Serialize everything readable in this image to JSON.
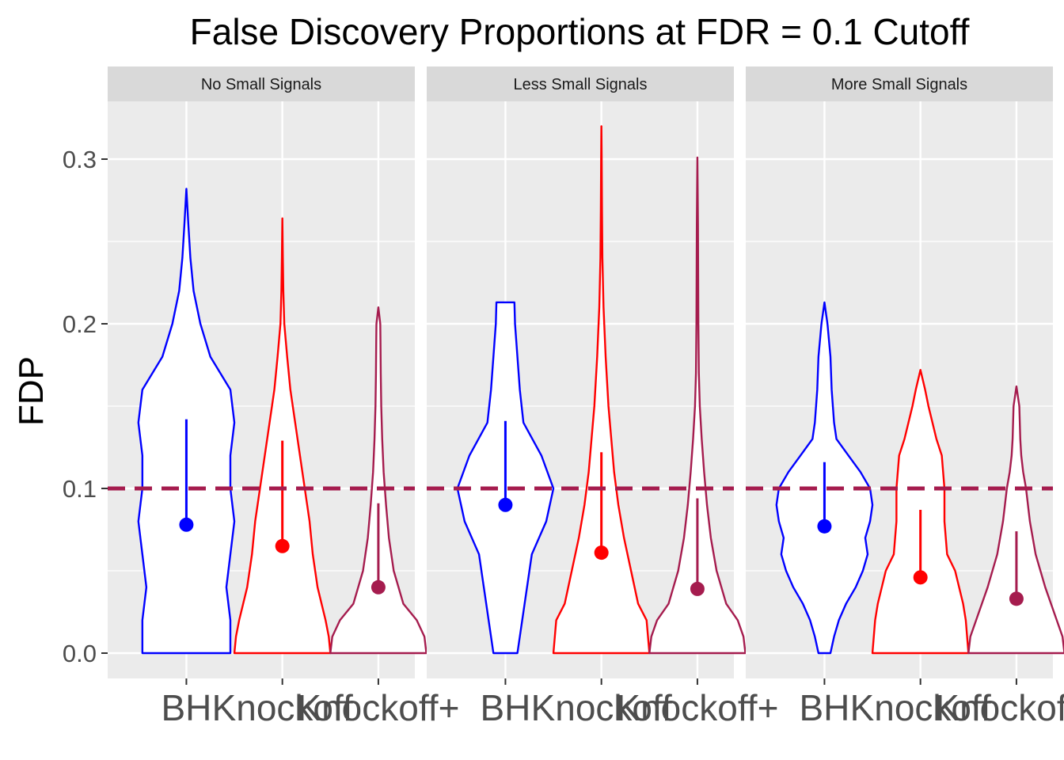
{
  "chart_data": {
    "type": "violin",
    "title": "False Discovery Proportions at FDR = 0.1 Cutoff",
    "xlabel": "",
    "ylabel": "FDP",
    "ylim": [
      -0.015,
      0.335
    ],
    "yticks": [
      0.0,
      0.1,
      0.2,
      0.3
    ],
    "ytick_labels": [
      "0.0",
      "0.1",
      "0.2",
      "0.3"
    ],
    "grid": true,
    "reference_line": {
      "y": 0.1,
      "style": "dashed",
      "color": "#A51C4E"
    },
    "categories": [
      "BH",
      "Knockoff",
      "Knockoff+"
    ],
    "series_colors": {
      "BH": "#0000FF",
      "Knockoff": "#FF0000",
      "Knockoff+": "#A51C4E"
    },
    "panels": [
      {
        "strip": "No Small Signals",
        "groups": [
          {
            "method": "BH",
            "mean": 0.078,
            "upper": 0.142,
            "max": 0.282,
            "profile": [
              [
                0.0,
                0.11
              ],
              [
                0.02,
                0.11
              ],
              [
                0.04,
                0.1
              ],
              [
                0.06,
                0.11
              ],
              [
                0.08,
                0.12
              ],
              [
                0.1,
                0.11
              ],
              [
                0.12,
                0.11
              ],
              [
                0.14,
                0.12
              ],
              [
                0.16,
                0.11
              ],
              [
                0.18,
                0.06
              ],
              [
                0.2,
                0.035
              ],
              [
                0.22,
                0.018
              ],
              [
                0.24,
                0.01
              ],
              [
                0.26,
                0.005
              ],
              [
                0.282,
                0.0
              ]
            ]
          },
          {
            "method": "Knockoff",
            "mean": 0.065,
            "upper": 0.129,
            "max": 0.264,
            "profile": [
              [
                0.0,
                0.3
              ],
              [
                0.01,
                0.29
              ],
              [
                0.02,
                0.27
              ],
              [
                0.04,
                0.22
              ],
              [
                0.06,
                0.19
              ],
              [
                0.08,
                0.17
              ],
              [
                0.1,
                0.14
              ],
              [
                0.12,
                0.11
              ],
              [
                0.14,
                0.08
              ],
              [
                0.16,
                0.05
              ],
              [
                0.18,
                0.03
              ],
              [
                0.2,
                0.012
              ],
              [
                0.22,
                0.006
              ],
              [
                0.24,
                0.003
              ],
              [
                0.264,
                0.0
              ]
            ]
          },
          {
            "method": "Knockoff+",
            "mean": 0.04,
            "upper": 0.091,
            "max": 0.21,
            "profile": [
              [
                0.0,
                0.5
              ],
              [
                0.01,
                0.48
              ],
              [
                0.02,
                0.4
              ],
              [
                0.03,
                0.26
              ],
              [
                0.05,
                0.16
              ],
              [
                0.07,
                0.11
              ],
              [
                0.09,
                0.08
              ],
              [
                0.11,
                0.055
              ],
              [
                0.13,
                0.04
              ],
              [
                0.15,
                0.03
              ],
              [
                0.17,
                0.025
              ],
              [
                0.19,
                0.022
              ],
              [
                0.2,
                0.02
              ],
              [
                0.21,
                0.0
              ]
            ]
          }
        ]
      },
      {
        "strip": "Less Small Signals",
        "groups": [
          {
            "method": "BH",
            "mean": 0.09,
            "upper": 0.141,
            "max": 0.213,
            "profile": [
              [
                0.0,
                0.1
              ],
              [
                0.02,
                0.14
              ],
              [
                0.04,
                0.18
              ],
              [
                0.06,
                0.22
              ],
              [
                0.08,
                0.34
              ],
              [
                0.1,
                0.4
              ],
              [
                0.12,
                0.3
              ],
              [
                0.14,
                0.15
              ],
              [
                0.16,
                0.12
              ],
              [
                0.18,
                0.1
              ],
              [
                0.2,
                0.08
              ],
              [
                0.213,
                0.075
              ]
            ]
          },
          {
            "method": "Knockoff",
            "mean": 0.061,
            "upper": 0.122,
            "max": 0.32,
            "profile": [
              [
                0.0,
                0.34
              ],
              [
                0.02,
                0.32
              ],
              [
                0.03,
                0.26
              ],
              [
                0.05,
                0.21
              ],
              [
                0.07,
                0.16
              ],
              [
                0.09,
                0.12
              ],
              [
                0.11,
                0.09
              ],
              [
                0.13,
                0.07
              ],
              [
                0.15,
                0.05
              ],
              [
                0.18,
                0.03
              ],
              [
                0.21,
                0.015
              ],
              [
                0.24,
                0.007
              ],
              [
                0.27,
                0.004
              ],
              [
                0.3,
                0.002
              ],
              [
                0.32,
                0.0
              ]
            ]
          },
          {
            "method": "Knockoff+",
            "mean": 0.039,
            "upper": 0.094,
            "max": 0.301,
            "profile": [
              [
                0.0,
                0.5
              ],
              [
                0.01,
                0.48
              ],
              [
                0.02,
                0.42
              ],
              [
                0.03,
                0.3
              ],
              [
                0.05,
                0.2
              ],
              [
                0.07,
                0.14
              ],
              [
                0.09,
                0.1
              ],
              [
                0.11,
                0.07
              ],
              [
                0.13,
                0.045
              ],
              [
                0.15,
                0.025
              ],
              [
                0.17,
                0.015
              ],
              [
                0.2,
                0.01
              ],
              [
                0.23,
                0.008
              ],
              [
                0.26,
                0.006
              ],
              [
                0.301,
                0.0
              ]
            ]
          }
        ]
      },
      {
        "strip": "More Small Signals",
        "groups": [
          {
            "method": "BH",
            "mean": 0.077,
            "upper": 0.116,
            "max": 0.213,
            "profile": [
              [
                0.0,
                0.05
              ],
              [
                0.01,
                0.08
              ],
              [
                0.02,
                0.12
              ],
              [
                0.03,
                0.18
              ],
              [
                0.04,
                0.26
              ],
              [
                0.05,
                0.32
              ],
              [
                0.06,
                0.36
              ],
              [
                0.07,
                0.34
              ],
              [
                0.08,
                0.38
              ],
              [
                0.09,
                0.4
              ],
              [
                0.1,
                0.38
              ],
              [
                0.11,
                0.3
              ],
              [
                0.12,
                0.2
              ],
              [
                0.13,
                0.1
              ],
              [
                0.14,
                0.08
              ],
              [
                0.16,
                0.06
              ],
              [
                0.18,
                0.05
              ],
              [
                0.2,
                0.025
              ],
              [
                0.213,
                0.0
              ]
            ]
          },
          {
            "method": "Knockoff",
            "mean": 0.046,
            "upper": 0.087,
            "max": 0.172,
            "profile": [
              [
                0.0,
                0.36
              ],
              [
                0.02,
                0.34
              ],
              [
                0.03,
                0.32
              ],
              [
                0.05,
                0.26
              ],
              [
                0.06,
                0.2
              ],
              [
                0.08,
                0.18
              ],
              [
                0.1,
                0.18
              ],
              [
                0.12,
                0.16
              ],
              [
                0.13,
                0.12
              ],
              [
                0.14,
                0.09
              ],
              [
                0.15,
                0.06
              ],
              [
                0.16,
                0.035
              ],
              [
                0.172,
                0.0
              ]
            ]
          },
          {
            "method": "Knockoff+",
            "mean": 0.033,
            "upper": 0.074,
            "max": 0.162,
            "profile": [
              [
                0.0,
                0.5
              ],
              [
                0.01,
                0.48
              ],
              [
                0.02,
                0.42
              ],
              [
                0.03,
                0.36
              ],
              [
                0.04,
                0.3
              ],
              [
                0.06,
                0.2
              ],
              [
                0.08,
                0.14
              ],
              [
                0.09,
                0.12
              ],
              [
                0.1,
                0.1
              ],
              [
                0.11,
                0.07
              ],
              [
                0.12,
                0.05
              ],
              [
                0.13,
                0.04
              ],
              [
                0.14,
                0.035
              ],
              [
                0.15,
                0.03
              ],
              [
                0.162,
                0.0
              ]
            ]
          }
        ]
      }
    ]
  }
}
